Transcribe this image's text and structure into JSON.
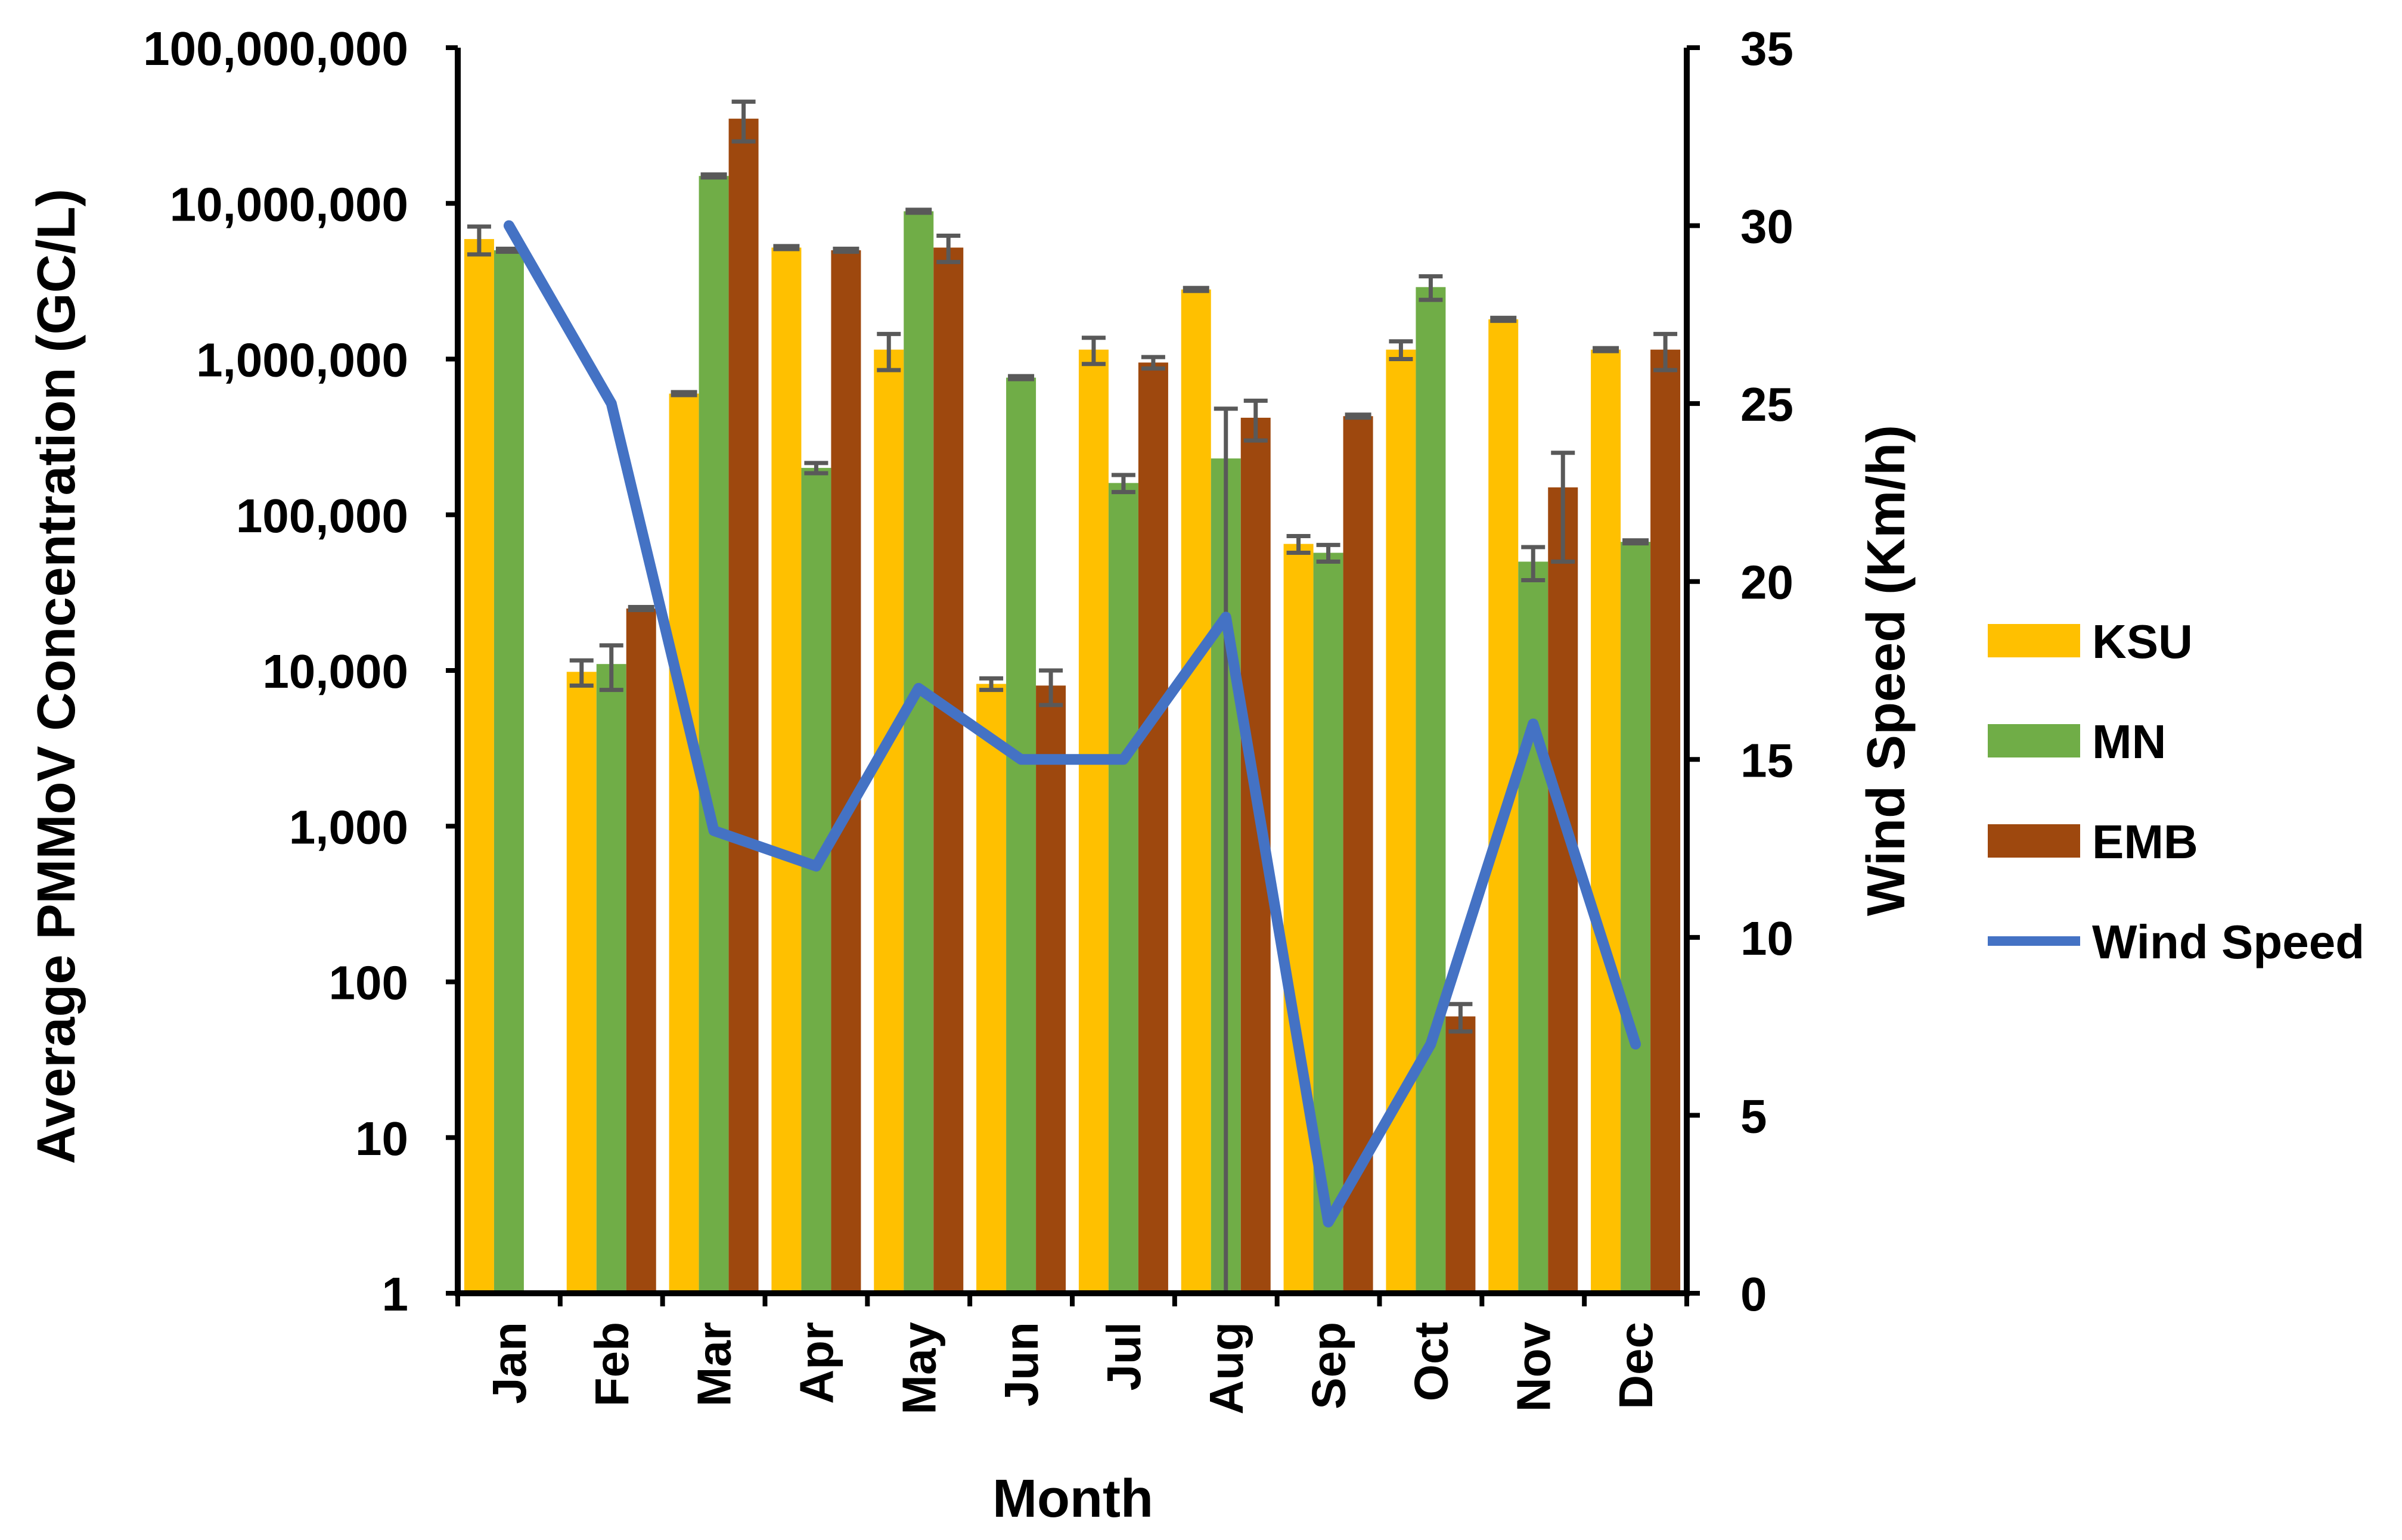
{
  "chart_data": {
    "type": "bar",
    "xlabel": "Month",
    "ylabel": "Average PMMoV Concentration (GC/L)",
    "y2label": "Wind Speed (Km/h)",
    "yscale": "log",
    "ylim": [
      1,
      100000000
    ],
    "y2lim": [
      0,
      35
    ],
    "y_ticks": [
      "1",
      "10",
      "100",
      "1,000",
      "10,000",
      "100,000",
      "1,000,000",
      "10,000,000",
      "100,000,000"
    ],
    "y2_ticks": [
      "0",
      "5",
      "10",
      "15",
      "20",
      "25",
      "30",
      "35"
    ],
    "categories": [
      "Jan",
      "Feb",
      "Mar",
      "Apr",
      "May",
      "Jun",
      "Jul",
      "Aug",
      "Sep",
      "Oct",
      "Nov",
      "Dec"
    ],
    "series": [
      {
        "name": "KSU",
        "color": "#FFC000",
        "values": [
          5900000,
          9800,
          600000,
          5200000,
          1150000,
          8200,
          1150000,
          2800000,
          65000,
          1150000,
          1800000,
          1150000
        ],
        "errors": [
          1200000,
          1800,
          0,
          0,
          300000,
          700,
          220000,
          0,
          8000,
          150000,
          0,
          0
        ]
      },
      {
        "name": "MN",
        "color": "#70AD47",
        "values": [
          5000000,
          11000,
          15000000,
          200000,
          8900000,
          760000,
          160000,
          230000,
          57000,
          2900000,
          50000,
          67000
        ],
        "errors": [
          0,
          3500,
          0,
          15000,
          0,
          0,
          20000,
          250000,
          7000,
          500000,
          12000,
          0
        ]
      },
      {
        "name": "EMB",
        "color": "#9E480E",
        "values": [
          null,
          25000,
          35000000,
          5000000,
          5200000,
          8000,
          950000,
          420000,
          430000,
          60,
          150000,
          1150000
        ],
        "errors": [
          0,
          0,
          10000000,
          0,
          1000000,
          2000,
          80000,
          120000,
          0,
          12,
          100000,
          300000
        ]
      }
    ],
    "line": {
      "name": "Wind Speed",
      "color": "#4472C4",
      "axis": "y2",
      "values": [
        30,
        25,
        13,
        12,
        17,
        15,
        15,
        19,
        2,
        7,
        16,
        7
      ]
    },
    "legend_position": "right",
    "grid": false
  }
}
